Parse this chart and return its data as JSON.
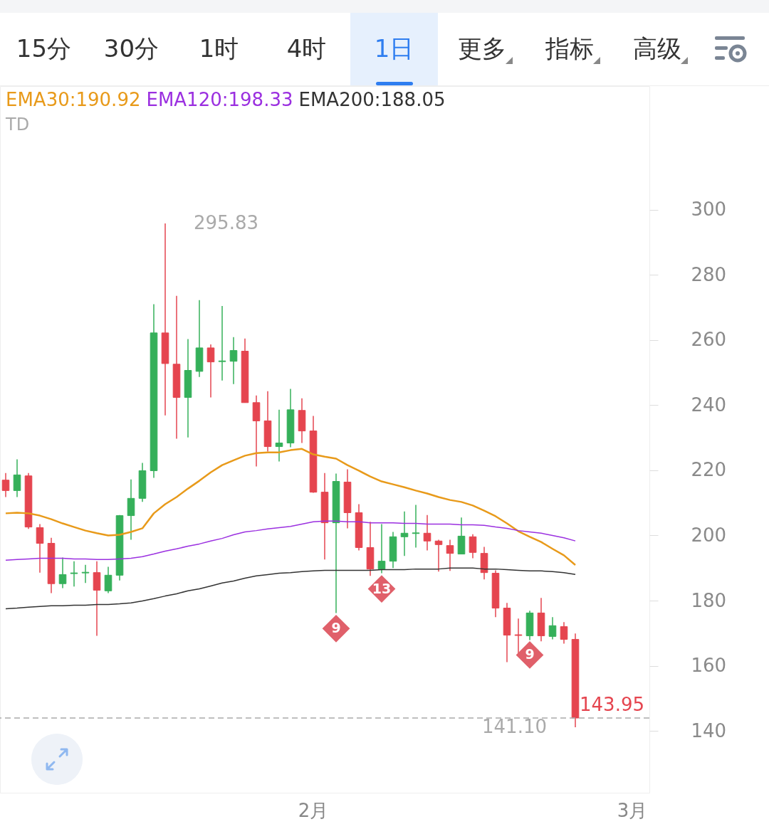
{
  "chart_data": {
    "type": "candlestick",
    "categories": [
      null,
      null,
      null,
      null,
      null,
      null,
      null,
      null,
      null,
      null,
      null,
      null,
      null,
      null,
      null,
      null,
      null,
      null,
      null,
      null,
      null,
      null,
      null,
      null,
      null,
      null,
      null,
      "2月",
      null,
      null,
      null,
      null,
      null,
      null,
      null,
      null,
      null,
      null,
      null,
      null,
      null,
      null,
      null,
      null,
      null,
      null,
      null,
      null,
      null,
      null,
      null,
      null,
      null,
      null,
      null,
      "3月",
      null
    ],
    "ohlc": [
      [
        217.0,
        219.2,
        211.8,
        213.8
      ],
      [
        213.8,
        223.4,
        211.8,
        218.6
      ],
      [
        218.3,
        219.2,
        202.0,
        202.6
      ],
      [
        202.4,
        203.5,
        188.6,
        197.6
      ],
      [
        197.6,
        199.3,
        182.3,
        185.2
      ],
      [
        185.2,
        193.2,
        183.8,
        188.0
      ],
      [
        188.3,
        192.1,
        184.3,
        188.5
      ],
      [
        188.5,
        191.0,
        185.4,
        188.7
      ],
      [
        188.6,
        192.1,
        169.2,
        183.2
      ],
      [
        183.0,
        190.4,
        182.3,
        187.8
      ],
      [
        187.8,
        206.3,
        186.2,
        206.1
      ],
      [
        206.1,
        217.2,
        198.7,
        211.4
      ],
      [
        211.4,
        222.3,
        210.3,
        219.9
      ],
      [
        219.9,
        271.0,
        217.7,
        262.2
      ],
      [
        262.2,
        295.83,
        236.9,
        252.8
      ],
      [
        252.6,
        273.6,
        229.7,
        242.4
      ],
      [
        242.4,
        260.3,
        230.1,
        250.7
      ],
      [
        250.4,
        272.3,
        248.7,
        257.6
      ],
      [
        257.6,
        258.7,
        242.4,
        253.3
      ],
      [
        253.4,
        270.5,
        247.6,
        253.6
      ],
      [
        253.5,
        260.9,
        246.5,
        256.8
      ],
      [
        256.6,
        260.5,
        240.8,
        240.8
      ],
      [
        240.8,
        243.0,
        221.2,
        235.2
      ],
      [
        235.2,
        244.3,
        225.8,
        227.3
      ],
      [
        227.3,
        238.6,
        222.7,
        228.4
      ],
      [
        228.4,
        245.0,
        227.1,
        238.6
      ],
      [
        238.4,
        242.1,
        228.4,
        232.1
      ],
      [
        232.1,
        236.7,
        213.1,
        213.3
      ],
      [
        213.3,
        219.2,
        192.6,
        203.9
      ],
      [
        203.9,
        219.0,
        176.2,
        216.6
      ],
      [
        216.4,
        220.3,
        202.2,
        207.0
      ],
      [
        207.0,
        209.6,
        195.4,
        196.3
      ],
      [
        196.3,
        204.2,
        187.6,
        189.7
      ],
      [
        189.7,
        203.5,
        188.4,
        192.1
      ],
      [
        192.1,
        201.1,
        190.0,
        199.6
      ],
      [
        199.6,
        207.4,
        193.7,
        200.7
      ],
      [
        200.6,
        209.4,
        196.3,
        200.8
      ],
      [
        200.7,
        206.3,
        195.4,
        198.3
      ],
      [
        198.3,
        198.7,
        188.9,
        197.2
      ],
      [
        196.9,
        198.7,
        189.1,
        194.5
      ],
      [
        194.3,
        205.5,
        194.3,
        199.8
      ],
      [
        199.6,
        200.4,
        193.0,
        194.8
      ],
      [
        194.5,
        196.5,
        186.5,
        188.6
      ],
      [
        188.4,
        189.3,
        174.9,
        177.7
      ],
      [
        177.7,
        179.3,
        161.1,
        169.4
      ],
      [
        169.5,
        174.5,
        163.8,
        169.3
      ],
      [
        169.2,
        176.9,
        167.9,
        176.2
      ],
      [
        176.2,
        180.8,
        167.5,
        169.2
      ],
      [
        169.0,
        174.9,
        168.1,
        172.3
      ],
      [
        172.0,
        173.4,
        166.8,
        168.1
      ],
      [
        168.1,
        169.9,
        141.1,
        143.95
      ],
      null,
      null,
      null,
      null,
      null,
      null
    ],
    "colors": [
      "#e5454f",
      "#35b05a",
      "#e5454f",
      "#e5454f",
      "#e5454f",
      "#35b05a",
      "#35b05a",
      "#35b05a",
      "#e5454f",
      "#35b05a",
      "#35b05a",
      "#35b05a",
      "#35b05a",
      "#35b05a",
      "#e5454f",
      "#e5454f",
      "#35b05a",
      "#35b05a",
      "#e5454f",
      "#35b05a",
      "#35b05a",
      "#e5454f",
      "#e5454f",
      "#e5454f",
      "#35b05a",
      "#35b05a",
      "#e5454f",
      "#e5454f",
      "#e5454f",
      "#35b05a",
      "#e5454f",
      "#e5454f",
      "#e5454f",
      "#35b05a",
      "#35b05a",
      "#35b05a",
      "#35b05a",
      "#e5454f",
      "#e5454f",
      "#e5454f",
      "#35b05a",
      "#e5454f",
      "#e5454f",
      "#e5454f",
      "#e5454f",
      "#e5454f",
      "#35b05a",
      "#e5454f",
      "#35b05a",
      "#e5454f",
      "#e5454f",
      null,
      null,
      null,
      null,
      null,
      null
    ],
    "series": [
      {
        "name": "EMA30:190.92",
        "type": "line",
        "color": "#e89a1a",
        "values": [
          206.8,
          207.0,
          206.8,
          206.1,
          205.0,
          203.7,
          202.6,
          201.5,
          200.7,
          200.0,
          200.2,
          201.1,
          202.2,
          206.8,
          209.6,
          211.8,
          214.4,
          216.8,
          219.4,
          221.6,
          223.1,
          224.5,
          225.3,
          225.5,
          225.5,
          226.2,
          226.6,
          224.9,
          224.2,
          223.6,
          221.6,
          219.9,
          218.1,
          216.6,
          215.7,
          214.8,
          213.8,
          212.9,
          211.8,
          210.9,
          210.3,
          209.2,
          207.6,
          205.9,
          203.7,
          201.3,
          199.6,
          198.0,
          195.9,
          193.9,
          190.92,
          null,
          null,
          null,
          null,
          null,
          null
        ]
      },
      {
        "name": "EMA120:198.33",
        "type": "line",
        "color": "#9b30e0",
        "values": [
          192.4,
          192.6,
          192.8,
          193.0,
          193.0,
          193.0,
          192.8,
          192.8,
          192.6,
          192.6,
          192.8,
          193.0,
          193.5,
          194.3,
          195.2,
          195.9,
          196.7,
          197.4,
          198.3,
          199.1,
          200.2,
          201.1,
          201.5,
          202.0,
          202.4,
          202.8,
          203.5,
          204.2,
          204.4,
          204.4,
          204.2,
          204.2,
          203.9,
          203.9,
          203.9,
          203.7,
          203.7,
          203.5,
          203.5,
          203.5,
          203.3,
          203.3,
          203.1,
          202.6,
          202.2,
          201.5,
          201.1,
          200.7,
          200.0,
          199.3,
          198.33,
          null,
          null,
          null,
          null,
          null,
          null
        ]
      },
      {
        "name": "EMA200:188.05",
        "type": "line",
        "color": "#333333",
        "values": [
          177.5,
          177.7,
          178.0,
          178.2,
          178.4,
          178.4,
          178.6,
          178.6,
          178.8,
          178.8,
          179.0,
          179.3,
          179.9,
          180.6,
          181.4,
          182.1,
          183.0,
          183.6,
          184.5,
          185.4,
          186.0,
          186.9,
          187.6,
          188.0,
          188.4,
          188.6,
          188.9,
          189.1,
          189.3,
          189.3,
          189.3,
          189.3,
          189.3,
          189.5,
          189.5,
          189.5,
          189.7,
          189.7,
          189.7,
          190.0,
          190.0,
          190.0,
          189.7,
          189.7,
          189.5,
          189.3,
          189.1,
          189.1,
          188.9,
          188.6,
          188.05,
          null,
          null,
          null,
          null,
          null,
          null
        ]
      },
      {
        "type": "scatter",
        "color": "#e0606a",
        "marker": "diamond",
        "values": [
          null,
          null,
          null,
          null,
          null,
          null,
          null,
          null,
          null,
          null,
          null,
          null,
          null,
          null,
          null,
          null,
          null,
          null,
          null,
          null,
          null,
          null,
          null,
          null,
          null,
          null,
          null,
          null,
          null,
          171.4,
          null,
          null,
          null,
          183.6,
          null,
          null,
          null,
          null,
          null,
          null,
          null,
          null,
          null,
          null,
          null,
          null,
          163.3,
          null,
          null,
          null,
          null,
          null,
          null,
          null,
          null,
          null,
          null
        ]
      }
    ],
    "ylim": [
      121,
      338
    ],
    "yticks": [
      140,
      160,
      180,
      200,
      220,
      240,
      260,
      280,
      300
    ],
    "ref_lines": [
      {
        "axis": "y",
        "value": 143.95,
        "label": "143.95",
        "color": "#aaaaaa",
        "line_style": "dashed"
      }
    ],
    "annotations": [
      "15分",
      "30分",
      "1时",
      "4时",
      "1日",
      "更多",
      "指标",
      "高级",
      "TD",
      "295.83",
      "141.10",
      "9",
      "13",
      "9"
    ],
    "legend": "top left"
  }
}
